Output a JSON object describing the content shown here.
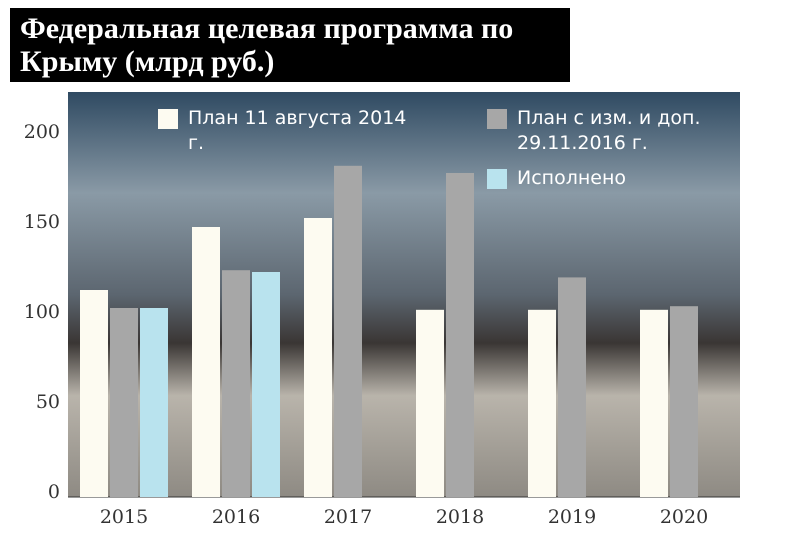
{
  "chart_data": {
    "type": "bar",
    "title": "Федеральная целевая программа по Крыму (млрд руб.)",
    "categories": [
      "2015",
      "2016",
      "2017",
      "2018",
      "2019",
      "2020"
    ],
    "series": [
      {
        "name": "План 11 августа 2014 г.",
        "color": "#fdfbf1",
        "values": [
          115,
          150,
          155,
          104,
          104,
          104
        ]
      },
      {
        "name": "План с изм. и доп. 29.11.2016 г.",
        "color": "#a7a7a7",
        "values": [
          105,
          126,
          184,
          180,
          122,
          106
        ]
      },
      {
        "name": "Исполнено",
        "color": "#b9e3ee",
        "values": [
          105,
          125,
          null,
          null,
          null,
          null
        ]
      }
    ],
    "ylim": [
      0,
      225
    ],
    "yticks": [
      0,
      50,
      100,
      150,
      200
    ],
    "grid": false
  }
}
